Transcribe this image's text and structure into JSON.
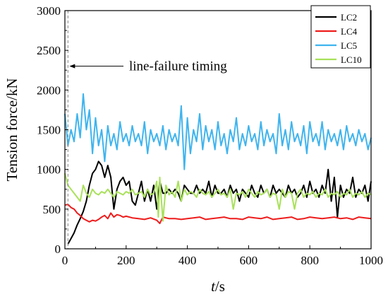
{
  "chart_data": {
    "type": "line",
    "xlabel_italic": "t",
    "xlabel_unit": "/s",
    "ylabel": "Tension force/kN",
    "xlim": [
      0,
      1000
    ],
    "ylim": [
      0,
      3000
    ],
    "x_ticks": [
      0,
      200,
      400,
      600,
      800,
      1000
    ],
    "y_ticks": [
      0,
      500,
      1000,
      1500,
      2000,
      2500,
      3000
    ],
    "grid": false,
    "legend_position": "top-right",
    "annotation": {
      "text": "line-failure timing",
      "x": 10,
      "y": 2300
    },
    "failure_line_x": 10,
    "series": [
      {
        "name": "LC2",
        "color": "#000000",
        "x": [
          10,
          20,
          30,
          40,
          50,
          60,
          70,
          80,
          90,
          100,
          110,
          120,
          130,
          140,
          150,
          160,
          170,
          180,
          190,
          200,
          210,
          220,
          230,
          240,
          250,
          260,
          270,
          280,
          290,
          300,
          310,
          320,
          330,
          340,
          350,
          360,
          370,
          380,
          390,
          400,
          410,
          420,
          430,
          440,
          450,
          460,
          470,
          480,
          490,
          500,
          510,
          520,
          530,
          540,
          550,
          560,
          570,
          580,
          590,
          600,
          610,
          620,
          630,
          640,
          650,
          660,
          670,
          680,
          690,
          700,
          710,
          720,
          730,
          740,
          750,
          760,
          770,
          780,
          790,
          800,
          810,
          820,
          830,
          840,
          850,
          860,
          870,
          880,
          890,
          900,
          910,
          920,
          930,
          940,
          950,
          960,
          970,
          980,
          990,
          1000
        ],
        "values": [
          60,
          130,
          200,
          300,
          380,
          470,
          600,
          800,
          950,
          1000,
          1100,
          1050,
          900,
          1050,
          900,
          500,
          750,
          850,
          900,
          800,
          850,
          600,
          550,
          700,
          850,
          600,
          750,
          600,
          800,
          500,
          850,
          700,
          700,
          750,
          700,
          750,
          700,
          600,
          800,
          750,
          700,
          700,
          800,
          700,
          750,
          700,
          850,
          650,
          800,
          700,
          700,
          750,
          650,
          800,
          700,
          750,
          600,
          750,
          700,
          650,
          800,
          700,
          650,
          800,
          700,
          750,
          650,
          800,
          700,
          750,
          700,
          650,
          800,
          700,
          750,
          650,
          700,
          800,
          650,
          850,
          700,
          750,
          650,
          800,
          700,
          1000,
          600,
          900,
          400,
          800,
          650,
          750,
          700,
          900,
          650,
          750,
          700,
          800,
          600,
          850
        ]
      },
      {
        "name": "LC4",
        "color": "#ee1c1c",
        "x": [
          0,
          10,
          20,
          30,
          40,
          50,
          60,
          70,
          80,
          90,
          100,
          110,
          120,
          130,
          140,
          150,
          160,
          170,
          180,
          190,
          200,
          220,
          240,
          260,
          280,
          300,
          310,
          320,
          340,
          360,
          380,
          400,
          420,
          440,
          460,
          480,
          500,
          520,
          540,
          560,
          580,
          600,
          620,
          640,
          660,
          680,
          700,
          720,
          740,
          760,
          780,
          800,
          820,
          840,
          860,
          880,
          900,
          920,
          940,
          960,
          980,
          1000
        ],
        "values": [
          550,
          560,
          520,
          500,
          450,
          420,
          380,
          360,
          340,
          360,
          350,
          370,
          400,
          420,
          380,
          450,
          400,
          430,
          420,
          400,
          410,
          390,
          380,
          370,
          390,
          360,
          320,
          400,
          380,
          380,
          370,
          380,
          390,
          400,
          370,
          380,
          390,
          400,
          380,
          380,
          370,
          400,
          390,
          380,
          400,
          370,
          380,
          390,
          400,
          370,
          380,
          400,
          390,
          380,
          390,
          400,
          380,
          390,
          370,
          400,
          390,
          380
        ]
      },
      {
        "name": "LC5",
        "color": "#3fb4ee",
        "x": [
          0,
          10,
          20,
          30,
          40,
          50,
          60,
          70,
          80,
          90,
          100,
          110,
          120,
          130,
          140,
          150,
          160,
          170,
          180,
          190,
          200,
          210,
          220,
          230,
          240,
          250,
          260,
          270,
          280,
          290,
          300,
          310,
          320,
          330,
          340,
          350,
          360,
          370,
          380,
          390,
          400,
          410,
          420,
          430,
          440,
          450,
          460,
          470,
          480,
          490,
          500,
          510,
          520,
          530,
          540,
          550,
          560,
          570,
          580,
          590,
          600,
          610,
          620,
          630,
          640,
          650,
          660,
          670,
          680,
          690,
          700,
          710,
          720,
          730,
          740,
          750,
          760,
          770,
          780,
          790,
          800,
          810,
          820,
          830,
          840,
          850,
          860,
          870,
          880,
          890,
          900,
          910,
          920,
          930,
          940,
          950,
          960,
          970,
          980,
          990,
          1000
        ],
        "values": [
          1700,
          1300,
          1500,
          1350,
          1700,
          1400,
          1950,
          1500,
          1750,
          1200,
          1650,
          1300,
          1500,
          1100,
          1550,
          1300,
          1450,
          1250,
          1600,
          1350,
          1450,
          1300,
          1550,
          1350,
          1450,
          1300,
          1600,
          1200,
          1500,
          1350,
          1450,
          1300,
          1550,
          1250,
          1500,
          1350,
          1450,
          1300,
          1800,
          1000,
          1650,
          1200,
          1500,
          1350,
          1700,
          1250,
          1550,
          1350,
          1500,
          1250,
          1600,
          1300,
          1450,
          1200,
          1500,
          1350,
          1650,
          1250,
          1450,
          1300,
          1550,
          1350,
          1450,
          1250,
          1600,
          1300,
          1500,
          1350,
          1450,
          1200,
          1700,
          1300,
          1500,
          1250,
          1600,
          1350,
          1450,
          1300,
          1550,
          1200,
          1600,
          1350,
          1450,
          1300,
          1600,
          1250,
          1500,
          1350,
          1450,
          1300,
          1500,
          1250,
          1550,
          1350,
          1450,
          1300,
          1500,
          1350,
          1450,
          1250,
          1400
        ]
      },
      {
        "name": "LC10",
        "color": "#a9e15a",
        "x": [
          0,
          10,
          20,
          30,
          40,
          50,
          60,
          70,
          80,
          90,
          100,
          110,
          120,
          130,
          140,
          150,
          160,
          170,
          180,
          190,
          200,
          210,
          220,
          230,
          240,
          250,
          260,
          270,
          280,
          290,
          300,
          305,
          310,
          320,
          330,
          340,
          350,
          360,
          370,
          380,
          390,
          400,
          410,
          420,
          430,
          440,
          450,
          460,
          470,
          480,
          490,
          500,
          510,
          520,
          530,
          540,
          550,
          560,
          570,
          580,
          590,
          600,
          610,
          620,
          630,
          640,
          650,
          660,
          670,
          680,
          690,
          700,
          710,
          720,
          730,
          740,
          750,
          760,
          770,
          780,
          790,
          800,
          810,
          820,
          830,
          840,
          850,
          860,
          870,
          880,
          890,
          900,
          910,
          920,
          930,
          940,
          950,
          960,
          970,
          980,
          990,
          1000
        ],
        "values": [
          950,
          800,
          750,
          700,
          650,
          600,
          800,
          700,
          650,
          750,
          700,
          680,
          720,
          700,
          750,
          700,
          650,
          720,
          700,
          680,
          720,
          700,
          750,
          680,
          700,
          720,
          650,
          750,
          680,
          700,
          850,
          400,
          900,
          350,
          800,
          680,
          720,
          650,
          850,
          600,
          750,
          680,
          720,
          700,
          650,
          750,
          700,
          680,
          720,
          650,
          700,
          750,
          680,
          700,
          650,
          750,
          500,
          700,
          680,
          720,
          650,
          750,
          700,
          650,
          720,
          680,
          700,
          750,
          650,
          700,
          680,
          500,
          750,
          650,
          720,
          700,
          500,
          700,
          750,
          650,
          700,
          680,
          720,
          650,
          700,
          680,
          750,
          650,
          700,
          680,
          720,
          650,
          700,
          680,
          750,
          650,
          700,
          680,
          720,
          650,
          700,
          680
        ]
      }
    ]
  }
}
